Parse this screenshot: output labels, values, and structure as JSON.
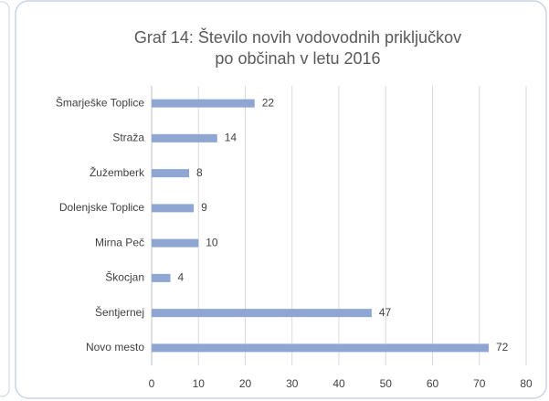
{
  "chart_data": {
    "type": "bar",
    "orientation": "horizontal",
    "title": [
      "Graf 14: Število novih vodovodnih priključkov",
      "po občinah v letu 2016"
    ],
    "categories": [
      "Šmarješke Toplice",
      "Straža",
      "Žužemberk",
      "Dolenjske Toplice",
      "Mirna Peč",
      "Škocjan",
      "Šentjernej",
      "Novo mesto"
    ],
    "values": [
      22,
      14,
      8,
      9,
      10,
      4,
      47,
      72
    ],
    "color": "#8fa6d2",
    "xlim": [
      0,
      80
    ],
    "xticks": [
      0,
      10,
      20,
      30,
      40,
      50,
      60,
      70,
      80
    ],
    "grid": true
  }
}
